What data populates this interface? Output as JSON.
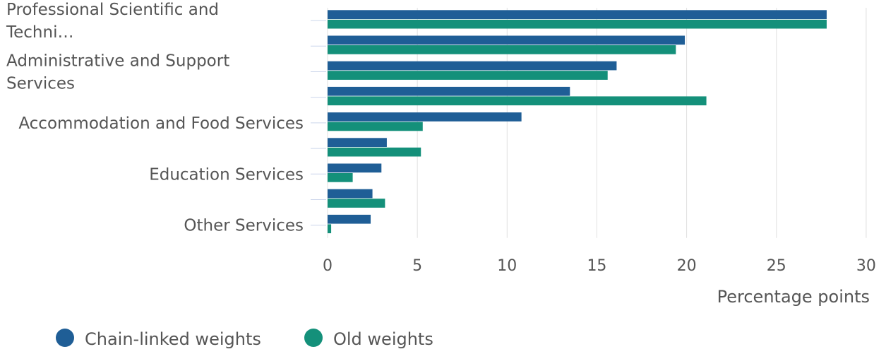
{
  "chart_data": {
    "type": "bar",
    "orientation": "horizontal",
    "title": "",
    "xlabel": "Percentage points",
    "ylabel": "",
    "xlim": [
      0,
      30
    ],
    "x_ticks": [
      0,
      5,
      10,
      15,
      20,
      25,
      30
    ],
    "grid": true,
    "legend_position": "bottom-left",
    "categories": [
      "Professional Scientific and Techni…",
      "",
      "Administrative and Support Services",
      "",
      "Accommodation and Food Services",
      "",
      "Education Services",
      "",
      "Other Services"
    ],
    "series": [
      {
        "name": "Chain-linked weights",
        "color": "#1f5e96",
        "values": [
          27.8,
          19.9,
          16.1,
          13.5,
          10.8,
          3.3,
          3.0,
          2.5,
          2.4
        ]
      },
      {
        "name": "Old weights",
        "color": "#14907a",
        "values": [
          27.8,
          19.4,
          15.6,
          21.1,
          5.3,
          5.2,
          1.4,
          3.2,
          0.2
        ]
      }
    ]
  }
}
